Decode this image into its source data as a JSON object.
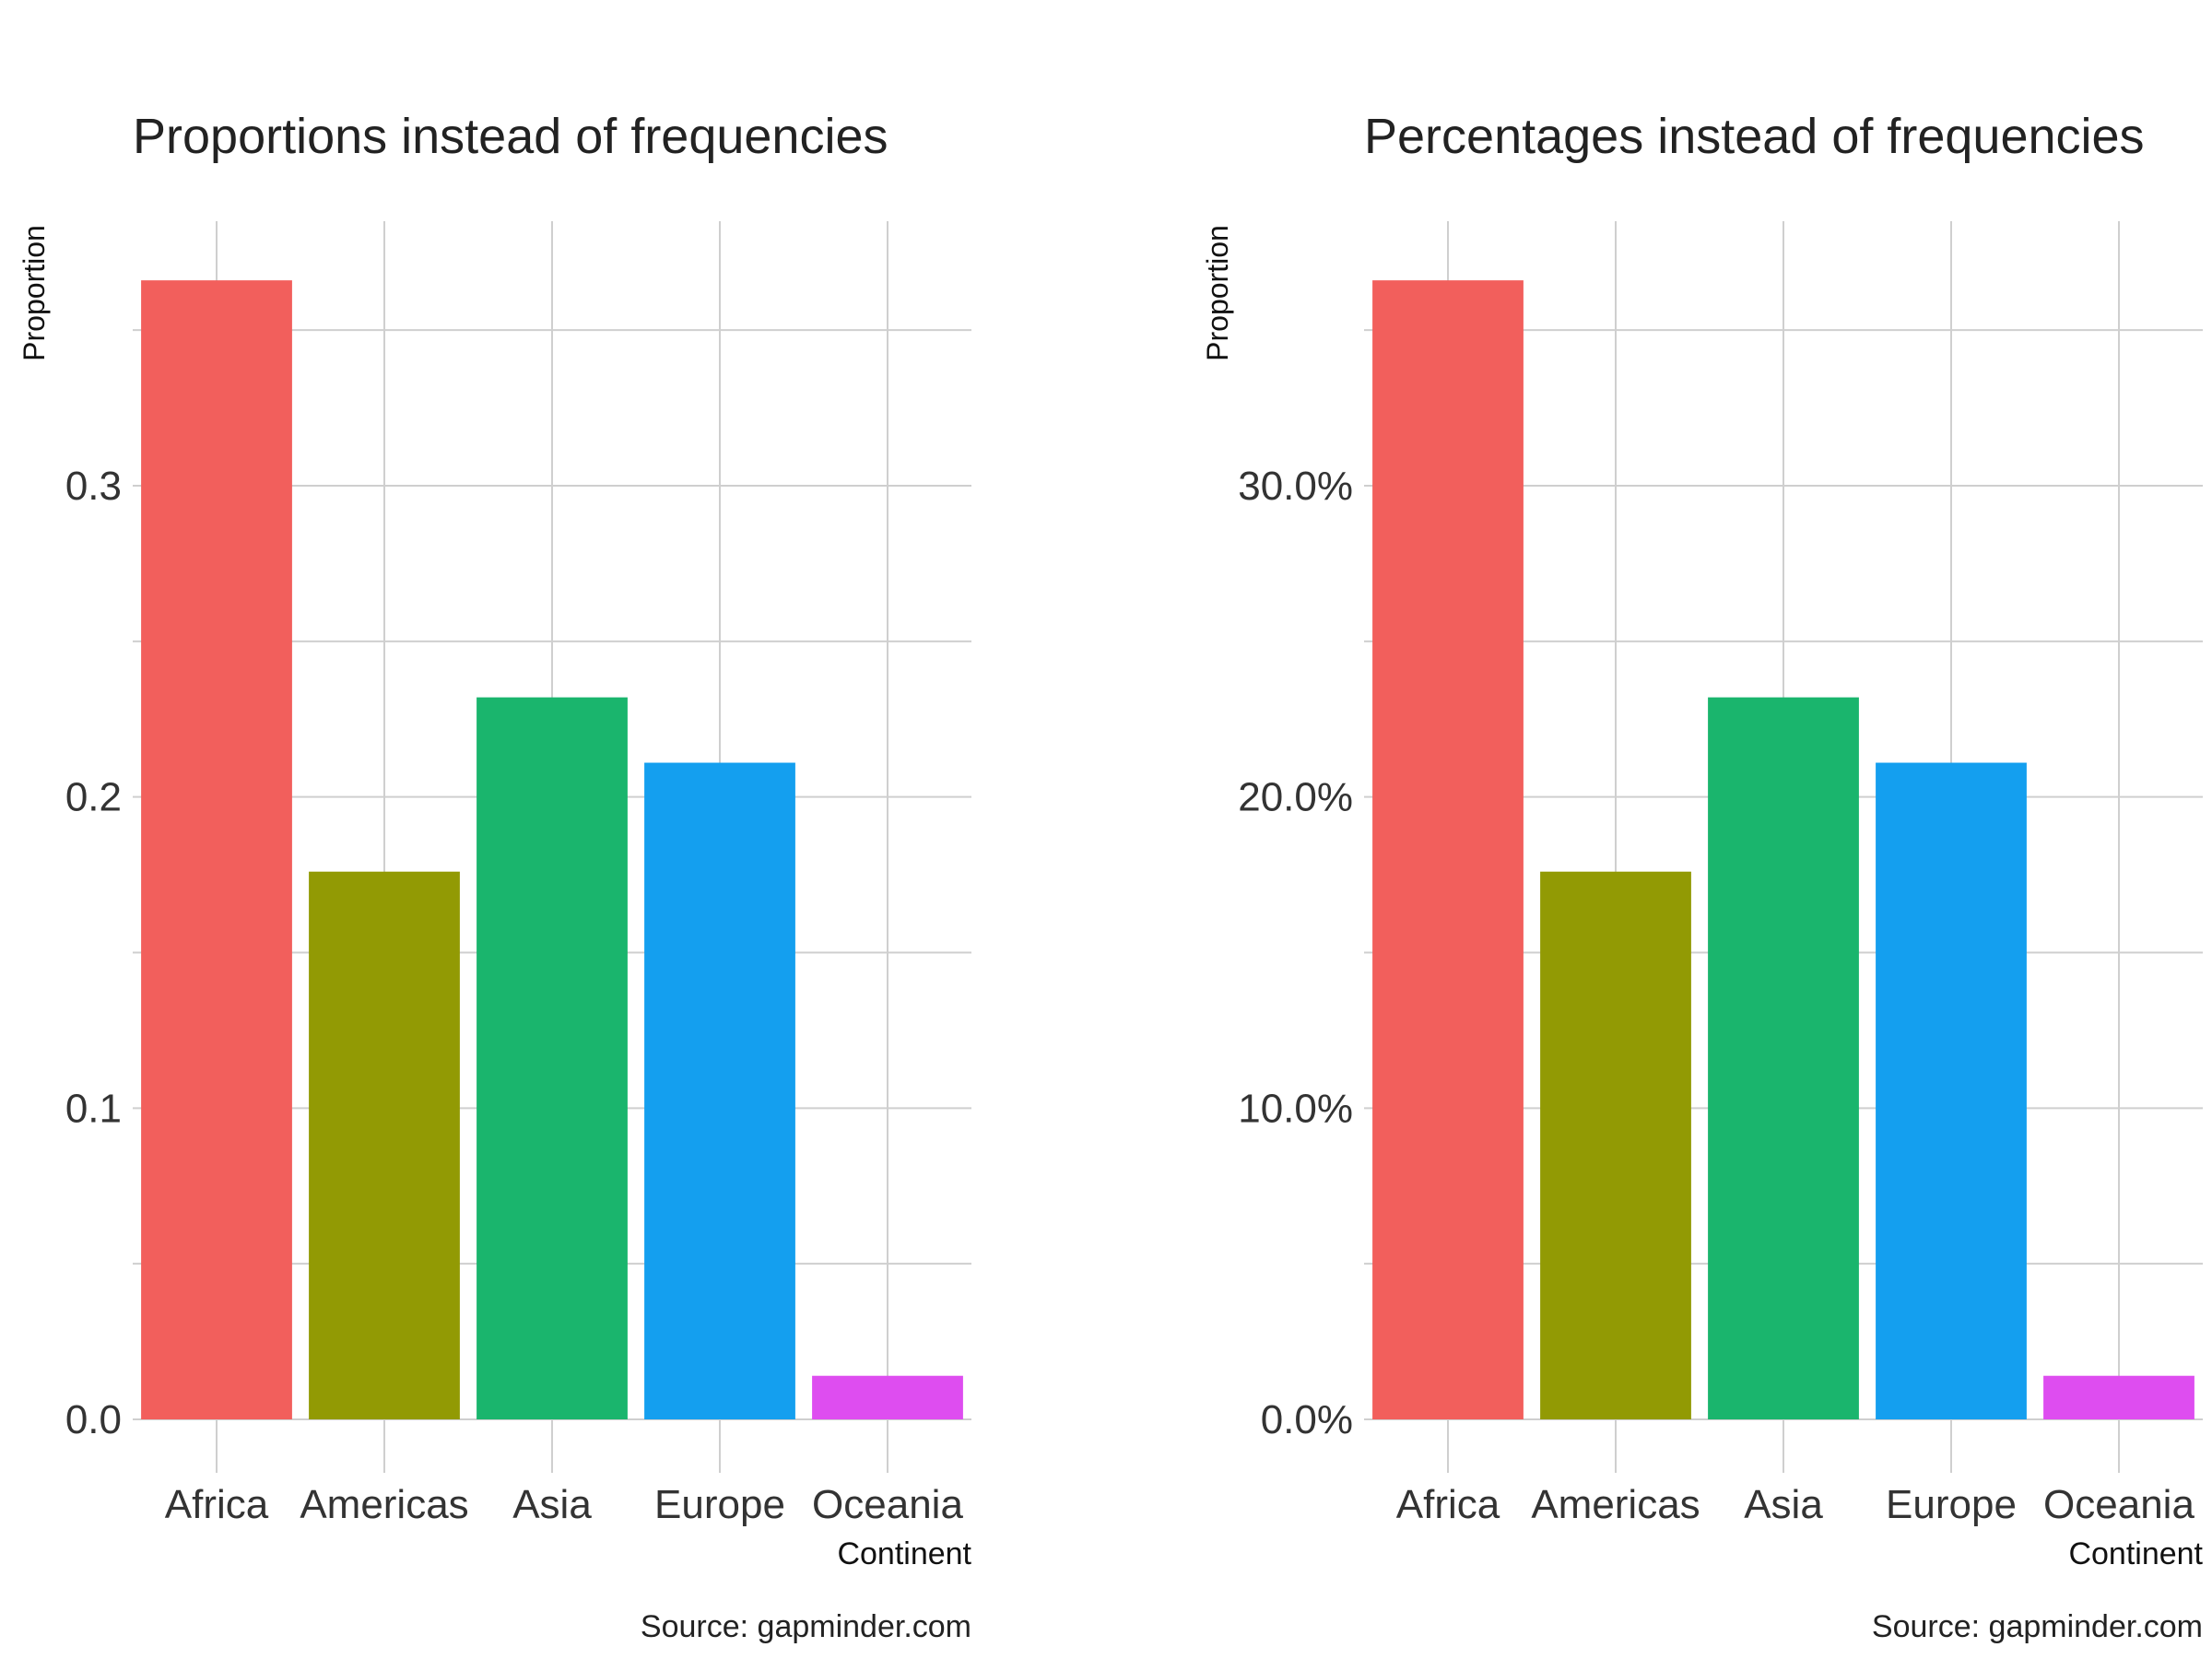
{
  "chart_data": [
    {
      "type": "bar",
      "title": "Proportions instead of frequencies",
      "ylabel": "Proportion",
      "xlabel": "Continent",
      "caption": "Source: gapminder.com",
      "categories": [
        "Africa",
        "Americas",
        "Asia",
        "Europe",
        "Oceania"
      ],
      "values": [
        0.366,
        0.176,
        0.232,
        0.211,
        0.014
      ],
      "colors": [
        "#F25F5C",
        "#929A04",
        "#1AB56D",
        "#149FEF",
        "#DE4DF0"
      ],
      "ylim": [
        0,
        0.385
      ],
      "yticks": [
        0,
        0.1,
        0.2,
        0.3
      ],
      "ytick_labels": [
        "0.0",
        "0.1",
        "0.2",
        "0.3"
      ],
      "grid": true
    },
    {
      "type": "bar",
      "title": "Percentages instead of frequencies",
      "ylabel": "Proportion",
      "xlabel": "Continent",
      "caption": "Source: gapminder.com",
      "categories": [
        "Africa",
        "Americas",
        "Asia",
        "Europe",
        "Oceania"
      ],
      "values": [
        36.6,
        17.6,
        23.2,
        21.1,
        1.4
      ],
      "colors": [
        "#F25F5C",
        "#929A04",
        "#1AB56D",
        "#149FEF",
        "#DE4DF0"
      ],
      "ylim": [
        0,
        38.5
      ],
      "yticks": [
        0,
        10,
        20,
        30
      ],
      "ytick_labels": [
        "0.0%",
        "10.0%",
        "20.0%",
        "30.0%"
      ],
      "grid": true
    }
  ]
}
